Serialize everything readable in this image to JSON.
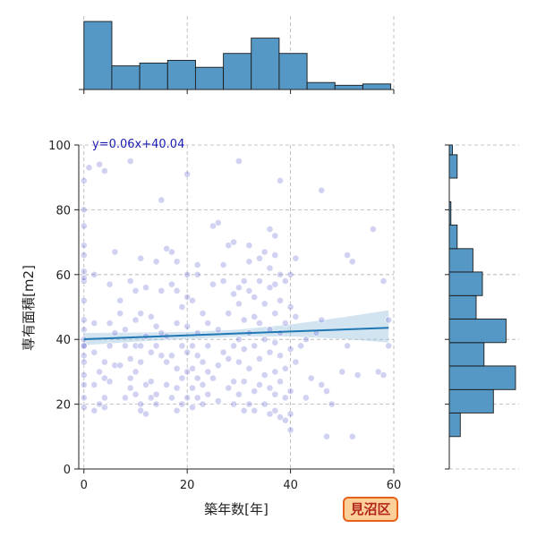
{
  "chart_data": {
    "type": "scatter",
    "xlabel": "築年数[年]",
    "ylabel": "専有面積[m2]",
    "xlim": [
      -1,
      60
    ],
    "ylim": [
      0,
      100
    ],
    "x_ticks": [
      0,
      20,
      40,
      60
    ],
    "y_ticks": [
      0,
      20,
      40,
      60,
      80,
      100
    ],
    "grid": true,
    "regression": {
      "label": "y=0.06x+40.04",
      "slope": 0.06,
      "intercept": 40.04,
      "ci_band": {
        "x": [
          0,
          10,
          20,
          30,
          40,
          50,
          59
        ],
        "lower": [
          38.2,
          39.3,
          40.1,
          40.8,
          40.9,
          40.2,
          39.0
        ],
        "upper": [
          42.0,
          42.1,
          42.3,
          43.0,
          44.6,
          46.8,
          49.0
        ]
      }
    },
    "top_histogram": {
      "bin_edges": [
        0,
        5.4,
        10.8,
        16.2,
        21.6,
        27.0,
        32.4,
        37.8,
        43.2,
        48.6,
        54.0,
        59.4
      ],
      "counts": [
        49,
        17,
        19,
        21,
        16,
        26,
        37,
        26,
        5,
        3,
        4
      ]
    },
    "right_histogram": {
      "bin_edges": [
        10,
        17.3,
        24.5,
        31.8,
        39.0,
        46.3,
        53.5,
        60.8,
        68.0,
        75.3,
        82.5,
        89.8,
        97.0,
        100
      ],
      "counts": [
        7,
        28,
        42,
        22,
        36,
        17,
        21,
        15,
        5,
        1,
        0,
        5,
        2
      ]
    },
    "series": [
      {
        "name": "",
        "points": [
          [
            0,
            19
          ],
          [
            0,
            22
          ],
          [
            0,
            26
          ],
          [
            0,
            29
          ],
          [
            0,
            33
          ],
          [
            0,
            35
          ],
          [
            0,
            38
          ],
          [
            0,
            40
          ],
          [
            0,
            43
          ],
          [
            0,
            46
          ],
          [
            0,
            52
          ],
          [
            0,
            58
          ],
          [
            0,
            61
          ],
          [
            0,
            66
          ],
          [
            0,
            69
          ],
          [
            0,
            75
          ],
          [
            0,
            80
          ],
          [
            0,
            89
          ],
          [
            0,
            59
          ],
          [
            0,
            38
          ],
          [
            1,
            93
          ],
          [
            2,
            18
          ],
          [
            2,
            26
          ],
          [
            2,
            36
          ],
          [
            2,
            45
          ],
          [
            2,
            60
          ],
          [
            3,
            20
          ],
          [
            3,
            30
          ],
          [
            3,
            94
          ],
          [
            4,
            22
          ],
          [
            4,
            19
          ],
          [
            4,
            28
          ],
          [
            4,
            33
          ],
          [
            4,
            92
          ],
          [
            5,
            27
          ],
          [
            5,
            38
          ],
          [
            5,
            45
          ],
          [
            5,
            57
          ],
          [
            6,
            32
          ],
          [
            6,
            42
          ],
          [
            6,
            67
          ],
          [
            7,
            32
          ],
          [
            7,
            48
          ],
          [
            7,
            52
          ],
          [
            8,
            22
          ],
          [
            8,
            38
          ],
          [
            8,
            43
          ],
          [
            9,
            25
          ],
          [
            9,
            28
          ],
          [
            9,
            34
          ],
          [
            9,
            58
          ],
          [
            9,
            95
          ],
          [
            10,
            23
          ],
          [
            10,
            30
          ],
          [
            10,
            38
          ],
          [
            10,
            46
          ],
          [
            10,
            55
          ],
          [
            11,
            18
          ],
          [
            11,
            20
          ],
          [
            11,
            33
          ],
          [
            11,
            38
          ],
          [
            11,
            48
          ],
          [
            11,
            65
          ],
          [
            12,
            17
          ],
          [
            12,
            26
          ],
          [
            12,
            41
          ],
          [
            12,
            56
          ],
          [
            13,
            22
          ],
          [
            13,
            27
          ],
          [
            13,
            36
          ],
          [
            13,
            47
          ],
          [
            14,
            20
          ],
          [
            14,
            23
          ],
          [
            14,
            38
          ],
          [
            14,
            44
          ],
          [
            14,
            64
          ],
          [
            15,
            35
          ],
          [
            15,
            42
          ],
          [
            15,
            55
          ],
          [
            15,
            83
          ],
          [
            16,
            33
          ],
          [
            16,
            26
          ],
          [
            16,
            41
          ],
          [
            16,
            68
          ],
          [
            17,
            22
          ],
          [
            17,
            35
          ],
          [
            17,
            57
          ],
          [
            17,
            67
          ],
          [
            18,
            18
          ],
          [
            18,
            25
          ],
          [
            18,
            31
          ],
          [
            18,
            45
          ],
          [
            18,
            55
          ],
          [
            18,
            64
          ],
          [
            19,
            20
          ],
          [
            19,
            28
          ],
          [
            19,
            38
          ],
          [
            19,
            50
          ],
          [
            20,
            22
          ],
          [
            20,
            30
          ],
          [
            20,
            36
          ],
          [
            20,
            44
          ],
          [
            20,
            53
          ],
          [
            20,
            60
          ],
          [
            20,
            91
          ],
          [
            21,
            19
          ],
          [
            21,
            25
          ],
          [
            21,
            31
          ],
          [
            21,
            38
          ],
          [
            21,
            52
          ],
          [
            22,
            22
          ],
          [
            22,
            28
          ],
          [
            22,
            35
          ],
          [
            22,
            42
          ],
          [
            22,
            60
          ],
          [
            22,
            63
          ],
          [
            23,
            20
          ],
          [
            23,
            26
          ],
          [
            23,
            33
          ],
          [
            23,
            48
          ],
          [
            24,
            23
          ],
          [
            24,
            30
          ],
          [
            24,
            38
          ],
          [
            24,
            45
          ],
          [
            25,
            28
          ],
          [
            25,
            57
          ],
          [
            25,
            75
          ],
          [
            26,
            21
          ],
          [
            26,
            32
          ],
          [
            26,
            43
          ],
          [
            26,
            76
          ],
          [
            27,
            36
          ],
          [
            27,
            58
          ],
          [
            27,
            63
          ],
          [
            28,
            25
          ],
          [
            28,
            34
          ],
          [
            28,
            48
          ],
          [
            28,
            69
          ],
          [
            29,
            20
          ],
          [
            29,
            27
          ],
          [
            29,
            38
          ],
          [
            29,
            54
          ],
          [
            29,
            70
          ],
          [
            30,
            23
          ],
          [
            30,
            33
          ],
          [
            30,
            40
          ],
          [
            30,
            51
          ],
          [
            30,
            56
          ],
          [
            30,
            95
          ],
          [
            31,
            18
          ],
          [
            31,
            27
          ],
          [
            31,
            37
          ],
          [
            31,
            46
          ],
          [
            31,
            58
          ],
          [
            32,
            20
          ],
          [
            32,
            31
          ],
          [
            32,
            42
          ],
          [
            32,
            55
          ],
          [
            32,
            64
          ],
          [
            32,
            69
          ],
          [
            33,
            18
          ],
          [
            33,
            24
          ],
          [
            33,
            38
          ],
          [
            33,
            47
          ],
          [
            33,
            53
          ],
          [
            34,
            26
          ],
          [
            34,
            34
          ],
          [
            34,
            45
          ],
          [
            34,
            58
          ],
          [
            34,
            65
          ],
          [
            35,
            20
          ],
          [
            35,
            29
          ],
          [
            35,
            40
          ],
          [
            35,
            51
          ],
          [
            35,
            67
          ],
          [
            36,
            17
          ],
          [
            36,
            25
          ],
          [
            36,
            36
          ],
          [
            36,
            43
          ],
          [
            36,
            56
          ],
          [
            36,
            62
          ],
          [
            36,
            74
          ],
          [
            37,
            18
          ],
          [
            37,
            23
          ],
          [
            37,
            30
          ],
          [
            37,
            39
          ],
          [
            37,
            48
          ],
          [
            37,
            57
          ],
          [
            37,
            66
          ],
          [
            37,
            72
          ],
          [
            38,
            16
          ],
          [
            38,
            27
          ],
          [
            38,
            35
          ],
          [
            38,
            42
          ],
          [
            38,
            52
          ],
          [
            38,
            60
          ],
          [
            38,
            89
          ],
          [
            39,
            15
          ],
          [
            39,
            22
          ],
          [
            39,
            31
          ],
          [
            39,
            45
          ],
          [
            39,
            58
          ],
          [
            40,
            12
          ],
          [
            40,
            17
          ],
          [
            40,
            24
          ],
          [
            40,
            37
          ],
          [
            40,
            50
          ],
          [
            40,
            60
          ],
          [
            41,
            33
          ],
          [
            41,
            47
          ],
          [
            41,
            65
          ],
          [
            42,
            38
          ],
          [
            43,
            22
          ],
          [
            43,
            40
          ],
          [
            44,
            28
          ],
          [
            45,
            42
          ],
          [
            46,
            26
          ],
          [
            46,
            46
          ],
          [
            46,
            86
          ],
          [
            47,
            24
          ],
          [
            47,
            10
          ],
          [
            48,
            20
          ],
          [
            50,
            30
          ],
          [
            51,
            66
          ],
          [
            51,
            38
          ],
          [
            52,
            10
          ],
          [
            52,
            64
          ],
          [
            53,
            29
          ],
          [
            56,
            74
          ],
          [
            57,
            30
          ],
          [
            58,
            58
          ],
          [
            58,
            29
          ],
          [
            59,
            38
          ],
          [
            59,
            46
          ]
        ]
      }
    ]
  },
  "badge": {
    "label": "見沼区"
  }
}
